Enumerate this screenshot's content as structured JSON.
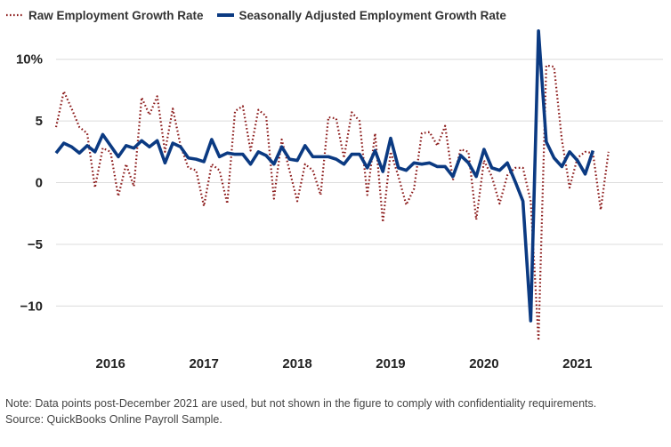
{
  "legend": {
    "raw_label": "Raw Employment Growth Rate",
    "sa_label": "Seasonally Adjusted Employment Growth Rate"
  },
  "notes": {
    "note": "Note: Data points post-December 2021 are used, but not shown in the figure to comply with confidentiality requirements.",
    "source": "Source: QuickBooks Online Payroll Sample."
  },
  "chart_data": {
    "type": "line",
    "x_axis": {
      "type": "monthly time",
      "start": "2015-06",
      "end": "2021-12",
      "tick_labels": [
        {
          "label": "2016",
          "date": "2016-01"
        },
        {
          "label": "2017",
          "date": "2017-01"
        },
        {
          "label": "2018",
          "date": "2018-01"
        },
        {
          "label": "2019",
          "date": "2019-01"
        },
        {
          "label": "2020",
          "date": "2020-01"
        },
        {
          "label": "2021",
          "date": "2021-01"
        }
      ]
    },
    "y_axis": {
      "ylim": [
        -13,
        12.5
      ],
      "ticks": [
        10,
        5,
        0,
        -5,
        -10
      ],
      "tick_labels": [
        "10%",
        "5",
        "0",
        "−5",
        "−10"
      ]
    },
    "grid": "horizontal",
    "legend_position": "top-left",
    "series": [
      {
        "name": "Raw Employment Growth Rate",
        "style": "dotted",
        "color": "#8b1a1a",
        "start": "2015-06",
        "values": [
          4.5,
          7.4,
          6.0,
          4.5,
          4.0,
          -0.4,
          2.8,
          2.5,
          -1.1,
          1.5,
          -0.3,
          6.9,
          5.5,
          7.0,
          2.5,
          6.0,
          3.0,
          1.2,
          1.0,
          -1.9,
          1.5,
          1.0,
          -1.7,
          5.8,
          6.2,
          2.6,
          5.9,
          5.4,
          -1.3,
          3.5,
          1.0,
          -1.5,
          1.5,
          1.0,
          -1.0,
          5.3,
          5.2,
          2.0,
          5.7,
          5.0,
          -1.0,
          4.0,
          -3.2,
          2.5,
          0.5,
          -1.8,
          -0.5,
          4.0,
          4.1,
          3.0,
          4.6,
          0.2,
          2.7,
          2.5,
          -3.0,
          1.8,
          0.5,
          -1.7,
          0.6,
          1.2,
          1.2,
          -1.5,
          -12.8,
          9.5,
          9.4,
          3.5,
          -0.4,
          2.0,
          2.5,
          2.4,
          -2.2,
          2.5
        ]
      },
      {
        "name": "Seasonally Adjusted Employment Growth Rate",
        "style": "solid",
        "color": "#0b3a82",
        "start": "2015-06",
        "values": [
          2.4,
          3.2,
          2.9,
          2.4,
          3.0,
          2.5,
          3.9,
          3.0,
          2.1,
          3.0,
          2.8,
          3.4,
          2.9,
          3.4,
          1.6,
          3.2,
          2.9,
          2.0,
          1.9,
          1.7,
          3.5,
          2.1,
          2.4,
          2.3,
          2.3,
          1.5,
          2.5,
          2.2,
          1.5,
          2.9,
          1.9,
          1.8,
          3.0,
          2.1,
          2.1,
          2.1,
          1.9,
          1.5,
          2.3,
          2.3,
          1.2,
          2.6,
          0.9,
          3.6,
          1.2,
          1.0,
          1.6,
          1.5,
          1.6,
          1.3,
          1.3,
          0.5,
          2.2,
          1.6,
          0.5,
          2.7,
          1.2,
          1.0,
          1.6,
          0.1,
          -1.5,
          -11.2,
          12.3,
          3.3,
          2.0,
          1.3,
          2.5,
          1.8,
          0.7,
          2.6
        ]
      }
    ]
  }
}
